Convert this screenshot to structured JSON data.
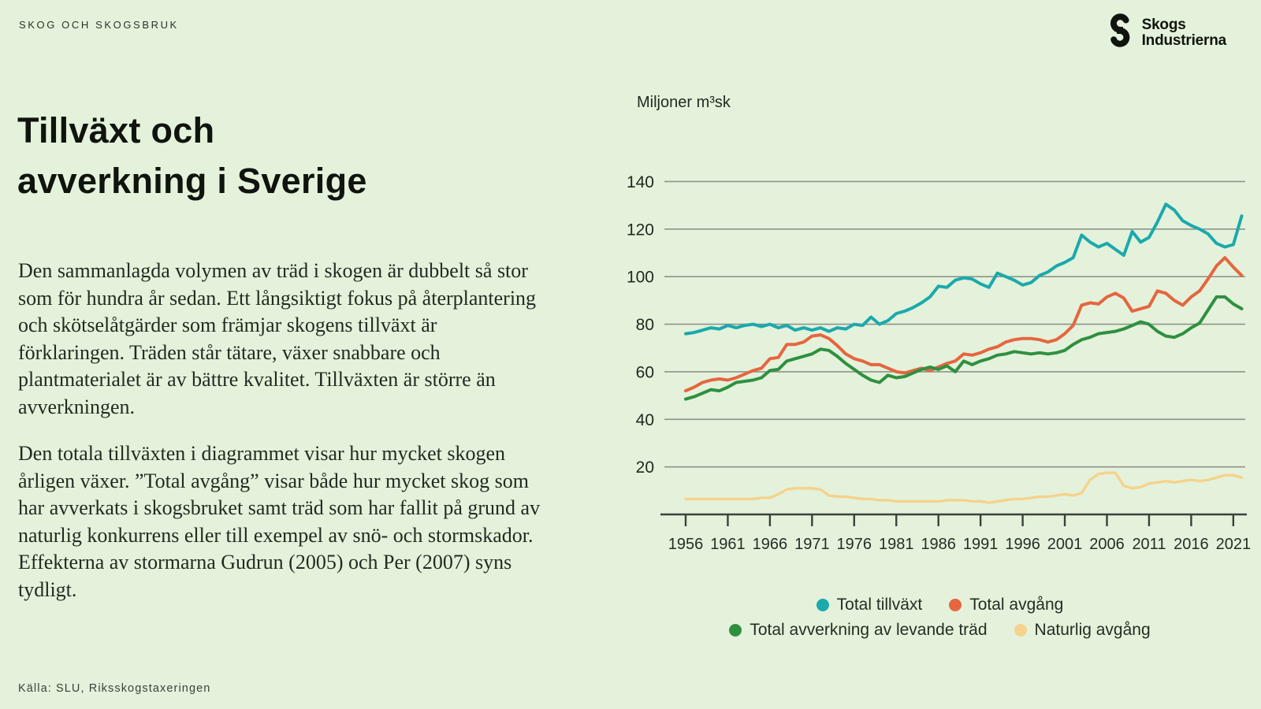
{
  "page": {
    "eyebrow": "SKOG OCH SKOGSBRUK",
    "title_line1": "Tillväxt och",
    "title_line2": "avverkning i Sverige",
    "paragraphs": {
      "p1": "Den sammanlagda volymen av träd i skogen är dubbelt så stor som för hundra år sedan. Ett långsiktigt fokus på återplantering och skötselåtgärder som främjar skogens tillväxt är förklaringen. Träden står tätare, växer snabbare och plantmaterialet är av bättre kvalitet. Tillväxten är större än avverkningen.",
      "p2": "Den totala tillväxten i diagrammet visar hur mycket skogen årligen växer. ”Total avgång” visar både hur mycket skog som har avverkats i skogsbruket samt träd som har fallit på grund av naturlig konkurrens eller till exempel av snö- och stormskador. Effekterna av stormarna Gudrun (2005) och Per (2007) syns tydligt."
    },
    "source": "Källa: SLU, Riksskogstaxeringen",
    "logo": {
      "line1": "Skogs",
      "line2": "Industrierna",
      "icon": "s-mark-icon"
    }
  },
  "colors": {
    "background": "#e4f2db",
    "grid": "#8d948a",
    "axis": "#39423a",
    "teal": "#1ba9ac",
    "orange": "#e5663f",
    "green": "#2f9040",
    "yellow": "#f6d28c"
  },
  "chart_data": {
    "type": "line",
    "unit_label": "Miljoner m³sk",
    "ylabel": "Miljoner m³sk",
    "xlabel": "",
    "ylim": [
      0,
      150
    ],
    "y_ticks": [
      20,
      40,
      60,
      80,
      100,
      120,
      140
    ],
    "x_tick_labels": [
      1956,
      1961,
      1966,
      1971,
      1976,
      1981,
      1986,
      1991,
      1996,
      2001,
      2006,
      2011,
      2016,
      2021
    ],
    "grid": "horizontal",
    "legend_position": "bottom",
    "legend_rows": [
      [
        0,
        1
      ],
      [
        2,
        3
      ]
    ],
    "years": [
      1956,
      1957,
      1958,
      1959,
      1960,
      1961,
      1962,
      1963,
      1964,
      1965,
      1966,
      1967,
      1968,
      1969,
      1970,
      1971,
      1972,
      1973,
      1974,
      1975,
      1976,
      1977,
      1978,
      1979,
      1980,
      1981,
      1982,
      1983,
      1984,
      1985,
      1986,
      1987,
      1988,
      1989,
      1990,
      1991,
      1992,
      1993,
      1994,
      1995,
      1996,
      1997,
      1998,
      1999,
      2000,
      2001,
      2002,
      2003,
      2004,
      2005,
      2006,
      2007,
      2008,
      2009,
      2010,
      2011,
      2012,
      2013,
      2014,
      2015,
      2016,
      2017,
      2018,
      2019,
      2020,
      2021,
      2022
    ],
    "series": [
      {
        "name": "Total tillväxt",
        "color": "#1ba9ac",
        "values": [
          76,
          76.5,
          77.5,
          78.5,
          78,
          79.5,
          78.5,
          79.5,
          80,
          79,
          80,
          78.5,
          79.5,
          77.5,
          78.5,
          77.5,
          78.5,
          77,
          78.5,
          78,
          80,
          79.5,
          83,
          80,
          81.5,
          84.5,
          85.5,
          87,
          89,
          91.5,
          96,
          95.5,
          98.5,
          99.5,
          99,
          97,
          95.5,
          101.5,
          100,
          98.5,
          96.5,
          97.5,
          100.5,
          102,
          104.5,
          106,
          108,
          117.5,
          114.5,
          112.5,
          114,
          111.5,
          109,
          119,
          114.5,
          116.5,
          123,
          130.5,
          128,
          123.5,
          121.5,
          120,
          118,
          114,
          112.5,
          113.5,
          125.5
        ]
      },
      {
        "name": "Total avgång",
        "color": "#e5663f",
        "values": [
          52,
          53.5,
          55.5,
          56.5,
          57,
          56.5,
          57.5,
          59,
          60.5,
          61.5,
          65.5,
          66,
          71.5,
          71.5,
          72.5,
          75,
          75.5,
          74,
          71,
          67.5,
          65.5,
          64.5,
          63,
          63,
          61.5,
          60,
          59.5,
          60.5,
          61.5,
          60.5,
          62,
          63.5,
          64.5,
          67.5,
          67,
          68,
          69.5,
          70.5,
          72.5,
          73.5,
          74,
          74,
          73.5,
          72.5,
          73.5,
          76,
          79.5,
          88,
          89,
          88.5,
          91.5,
          93,
          91,
          85.5,
          86.5,
          87.5,
          94,
          93,
          90,
          88,
          91.5,
          94,
          99,
          104.5,
          108,
          104,
          100.5
        ]
      },
      {
        "name": "Total avverkning av levande träd",
        "color": "#2f9040",
        "values": [
          48.5,
          49.5,
          51,
          52.5,
          52,
          53.5,
          55.5,
          56,
          56.5,
          57.5,
          60.5,
          61,
          64.5,
          65.5,
          66.5,
          67.5,
          69.5,
          69,
          66.5,
          63.5,
          61,
          58.5,
          56.5,
          55.5,
          58.5,
          57.5,
          58,
          59.5,
          61,
          62,
          61,
          62.5,
          60,
          64.5,
          63,
          64.5,
          65.5,
          67,
          67.5,
          68.5,
          68,
          67.5,
          68,
          67.5,
          68,
          69,
          71.5,
          73.5,
          74.5,
          76,
          76.5,
          77,
          78,
          79.5,
          81,
          80,
          77,
          75,
          74.5,
          76,
          78.5,
          80.5,
          86,
          91.5,
          91.5,
          88.5,
          86.5
        ]
      },
      {
        "name": "Naturlig avgång",
        "color": "#f6d28c",
        "values": [
          6.5,
          6.5,
          6.5,
          6.5,
          6.5,
          6.5,
          6.5,
          6.5,
          6.5,
          7,
          7,
          8.5,
          10.5,
          11,
          11,
          11,
          10.5,
          8,
          7.5,
          7.5,
          7,
          6.5,
          6.5,
          6,
          6,
          5.5,
          5.5,
          5.5,
          5.5,
          5.5,
          5.5,
          6,
          6,
          6,
          5.5,
          5.5,
          5,
          5.5,
          6,
          6.5,
          6.5,
          7,
          7.5,
          7.5,
          8,
          8.5,
          8,
          9,
          14.5,
          17,
          17.5,
          17.5,
          12,
          11,
          11.5,
          13,
          13.5,
          14,
          13.5,
          14,
          14.5,
          14,
          14.5,
          15.5,
          16.5,
          16.5,
          15.5
        ]
      }
    ]
  }
}
